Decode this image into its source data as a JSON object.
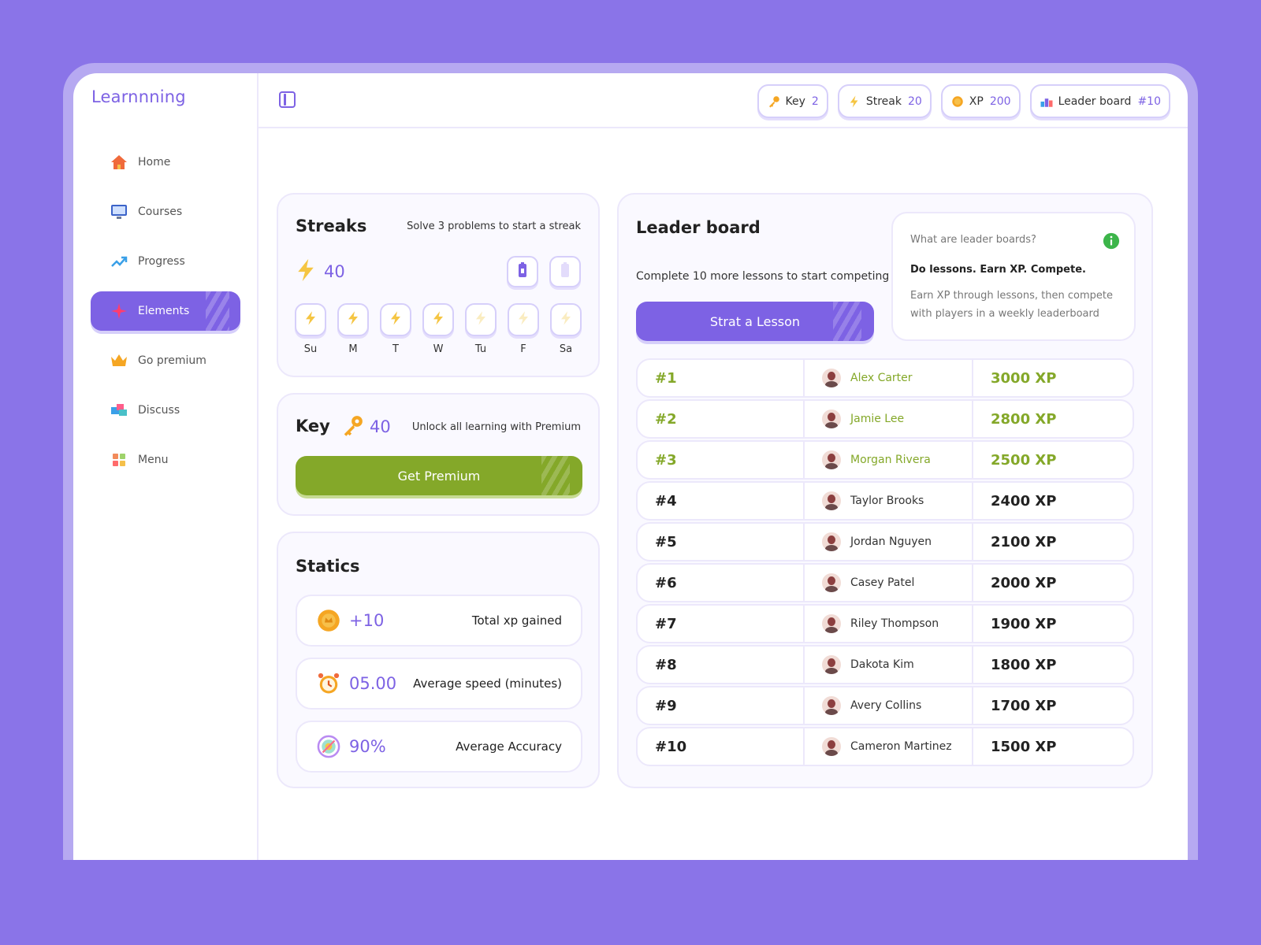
{
  "app": {
    "logo": "Learnnning"
  },
  "sidebar": {
    "items": [
      {
        "label": "Home",
        "icon": "house-icon"
      },
      {
        "label": "Courses",
        "icon": "monitor-icon"
      },
      {
        "label": "Progress",
        "icon": "trend-up-icon"
      },
      {
        "label": "Elements",
        "icon": "sparkle-icon",
        "active": true
      },
      {
        "label": "Go premium",
        "icon": "crown-icon"
      },
      {
        "label": "Discuss",
        "icon": "chat-blocks-icon"
      },
      {
        "label": "Menu",
        "icon": "grid-icon"
      }
    ]
  },
  "header": {
    "key": {
      "label": "Key",
      "value": "2"
    },
    "streak": {
      "label": "Streak",
      "value": "20"
    },
    "xp": {
      "label": "XP",
      "value": "200"
    },
    "leaderboard": {
      "label": "Leader board",
      "value": "#10"
    }
  },
  "streaks": {
    "title": "Streaks",
    "subtitle": "Solve 3 problems to start a streak",
    "count": "40",
    "days": [
      {
        "label": "Su",
        "active": true
      },
      {
        "label": "M",
        "active": true
      },
      {
        "label": "T",
        "active": true
      },
      {
        "label": "W",
        "active": true
      },
      {
        "label": "Tu",
        "active": false
      },
      {
        "label": "F",
        "active": false
      },
      {
        "label": "Sa",
        "active": false
      }
    ]
  },
  "key_card": {
    "title": "Key",
    "count": "40",
    "text": "Unlock all learning with Premium",
    "button": "Get Premium"
  },
  "statics": {
    "title": "Statics",
    "items": [
      {
        "value": "+10",
        "label": "Total xp gained",
        "icon": "coin-icon"
      },
      {
        "value": "05.00",
        "label": "Average speed (minutes)",
        "icon": "alarm-clock-icon"
      },
      {
        "value": "90%",
        "label": "Average Accuracy",
        "icon": "target-icon"
      }
    ]
  },
  "leaderboard": {
    "title": "Leader board",
    "subtitle": "Complete 10 more lessons to start competing",
    "button": "Strat a Lesson",
    "info": {
      "question": "What are leader boards?",
      "headline": "Do lessons. Earn XP. Compete.",
      "body": "Earn XP through lessons, then compete with players in a weekly leaderboard"
    },
    "rows": [
      {
        "rank": "#1",
        "name": "Alex Carter",
        "xp": "3000 XP"
      },
      {
        "rank": "#2",
        "name": "Jamie Lee",
        "xp": "2800 XP"
      },
      {
        "rank": "#3",
        "name": "Morgan Rivera",
        "xp": "2500 XP"
      },
      {
        "rank": "#4",
        "name": "Taylor Brooks",
        "xp": "2400 XP"
      },
      {
        "rank": "#5",
        "name": "Jordan Nguyen",
        "xp": "2100 XP"
      },
      {
        "rank": "#6",
        "name": "Casey Patel",
        "xp": "2000 XP"
      },
      {
        "rank": "#7",
        "name": "Riley Thompson",
        "xp": "1900 XP"
      },
      {
        "rank": "#8",
        "name": "Dakota Kim",
        "xp": "1800 XP"
      },
      {
        "rank": "#9",
        "name": "Avery Collins",
        "xp": "1700 XP"
      },
      {
        "rank": "#10",
        "name": "Cameron Martinez",
        "xp": "1500 XP"
      }
    ]
  },
  "colors": {
    "accent": "#7d62e4",
    "green": "#84a829",
    "background": "#8a74e8"
  }
}
